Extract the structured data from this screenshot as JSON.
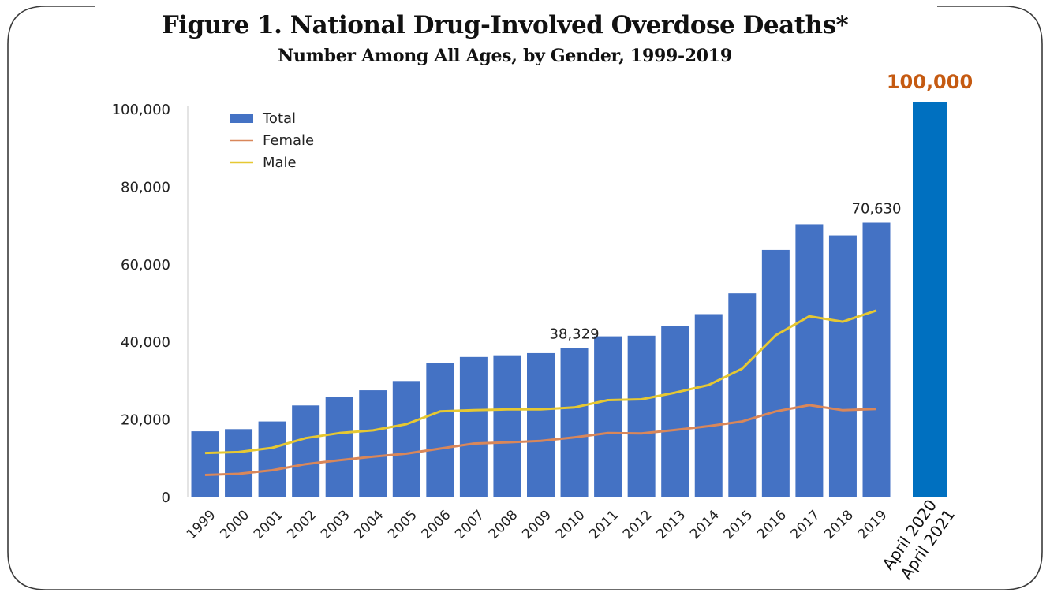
{
  "chart_data": {
    "type": "bar",
    "title": "Figure 1. National Drug-Involved Overdose Deaths*",
    "subtitle": "Number Among All Ages, by Gender, 1999-2019",
    "categories": [
      "1999",
      "2000",
      "2001",
      "2002",
      "2003",
      "2004",
      "2005",
      "2006",
      "2007",
      "2008",
      "2009",
      "2010",
      "2011",
      "2012",
      "2013",
      "2014",
      "2015",
      "2016",
      "2017",
      "2018",
      "2019"
    ],
    "series": [
      {
        "name": "Total",
        "kind": "bar",
        "color": "#4472c4",
        "values": [
          16849,
          17415,
          19394,
          23518,
          25785,
          27424,
          29813,
          34425,
          36010,
          36450,
          37004,
          38329,
          41340,
          41502,
          43982,
          47055,
          52404,
          63632,
          70237,
          67367,
          70630
        ]
      },
      {
        "name": "Female",
        "kind": "line",
        "color": "#d9875a",
        "values": [
          5591,
          5900,
          6800,
          8400,
          9400,
          10300,
          11100,
          12400,
          13700,
          14000,
          14400,
          15300,
          16400,
          16300,
          17200,
          18200,
          19400,
          22000,
          23600,
          22300,
          22600
        ]
      },
      {
        "name": "Male",
        "kind": "line",
        "color": "#e6c832",
        "values": [
          11258,
          11500,
          12600,
          15100,
          16400,
          17100,
          18700,
          22000,
          22300,
          22500,
          22500,
          23000,
          24900,
          25100,
          26800,
          28800,
          33000,
          41600,
          46500,
          45100,
          48000
        ]
      }
    ],
    "ylim": [
      0,
      100000
    ],
    "yticks": [
      "0",
      "20,000",
      "40,000",
      "60,000",
      "80,000",
      "100,000"
    ],
    "legend": "top-left",
    "annotations": [
      {
        "category": "2010",
        "text": "38,329"
      },
      {
        "category": "2019",
        "text": "70,630"
      }
    ],
    "extra_bar": {
      "label": "April 2020 April 2021",
      "value": 100000,
      "value_label": "100,000",
      "color": "#0070c0",
      "label_color": "#c55a11"
    }
  }
}
